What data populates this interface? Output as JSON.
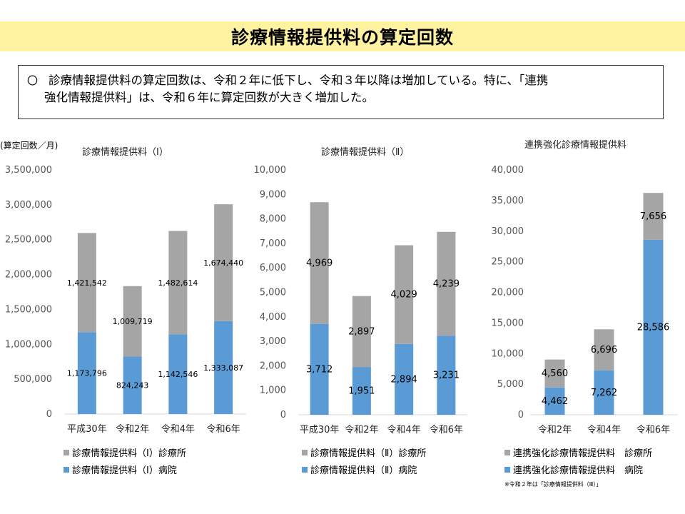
{
  "title": "診療情報提供料の算定回数",
  "summary": {
    "line1": "診療情報提供料の算定回数は、令和２年に低下し、令和３年以降は増加している。特に、「連携",
    "line2": "強化情報提供料」は、令和６年に算定回数が大きく増加した。"
  },
  "unit_label": "(算定回数／月)",
  "colors": {
    "clinic": "#a5a5a5",
    "hospital": "#5b9bd5",
    "axis": "#d9d9d9"
  },
  "footnote": "※令和２年は「診療情報提供料（Ⅲ）」",
  "chart_data": [
    {
      "type": "bar",
      "stacked": true,
      "title": "診療情報提供料（Ⅰ）",
      "categories": [
        "平成30年",
        "令和2年",
        "令和4年",
        "令和6年"
      ],
      "ylim": [
        0,
        3500000
      ],
      "yticks": [
        "0",
        "500,000",
        "1,000,000",
        "1,500,000",
        "2,000,000",
        "2,500,000",
        "3,000,000",
        "3,500,000"
      ],
      "series": [
        {
          "name": "診療情報提供料（Ⅰ）病院",
          "color": "#5b9bd5",
          "values": [
            1173796,
            824243,
            1142546,
            1333087
          ],
          "labels": [
            "1,173,796",
            "824,243",
            "1,142,546",
            "1,333,087"
          ]
        },
        {
          "name": "診療情報提供料（Ⅰ）診療所",
          "color": "#a5a5a5",
          "values": [
            1421542,
            1009719,
            1482614,
            1674440
          ],
          "labels": [
            "1,421,542",
            "1,009,719",
            "1,482,614",
            "1,674,440"
          ]
        }
      ],
      "legend": [
        "診療情報提供料（Ⅰ）診療所",
        "診療情報提供料（Ⅰ）病院"
      ]
    },
    {
      "type": "bar",
      "stacked": true,
      "title": "診療情報提供料（Ⅱ）",
      "categories": [
        "平成30年",
        "令和2年",
        "令和4年",
        "令和6年"
      ],
      "ylim": [
        0,
        10000
      ],
      "yticks": [
        "0",
        "1,000",
        "2,000",
        "3,000",
        "4,000",
        "5,000",
        "6,000",
        "7,000",
        "8,000",
        "9,000",
        "10,000"
      ],
      "series": [
        {
          "name": "診療情報提供料（Ⅱ）病院",
          "color": "#5b9bd5",
          "values": [
            3712,
            1951,
            2894,
            3231
          ],
          "labels": [
            "3,712",
            "1,951",
            "2,894",
            "3,231"
          ]
        },
        {
          "name": "診療情報提供料（Ⅱ）診療所",
          "color": "#a5a5a5",
          "values": [
            4969,
            2897,
            4029,
            4239
          ],
          "labels": [
            "4,969",
            "2,897",
            "4,029",
            "4,239"
          ]
        }
      ],
      "legend": [
        "診療情報提供料（Ⅱ）診療所",
        "診療情報提供料（Ⅱ）病院"
      ]
    },
    {
      "type": "bar",
      "stacked": true,
      "title": "連携強化診療情報提供料",
      "categories": [
        "令和2年",
        "令和4年",
        "令和6年"
      ],
      "ylim": [
        0,
        40000
      ],
      "yticks": [
        "0",
        "5,000",
        "10,000",
        "15,000",
        "20,000",
        "25,000",
        "30,000",
        "35,000",
        "40,000"
      ],
      "series": [
        {
          "name": "連携強化診療情報提供料　病院",
          "color": "#5b9bd5",
          "values": [
            4462,
            7262,
            28586
          ],
          "labels": [
            "4,462",
            "7,262",
            "28,586"
          ]
        },
        {
          "name": "連携強化診療情報提供料　診療所",
          "color": "#a5a5a5",
          "values": [
            4560,
            6696,
            7656
          ],
          "labels": [
            "4,560",
            "6,696",
            "7,656"
          ]
        }
      ],
      "legend": [
        "連携強化診療情報提供料　診療所",
        "連携強化診療情報提供料　病院"
      ]
    }
  ]
}
